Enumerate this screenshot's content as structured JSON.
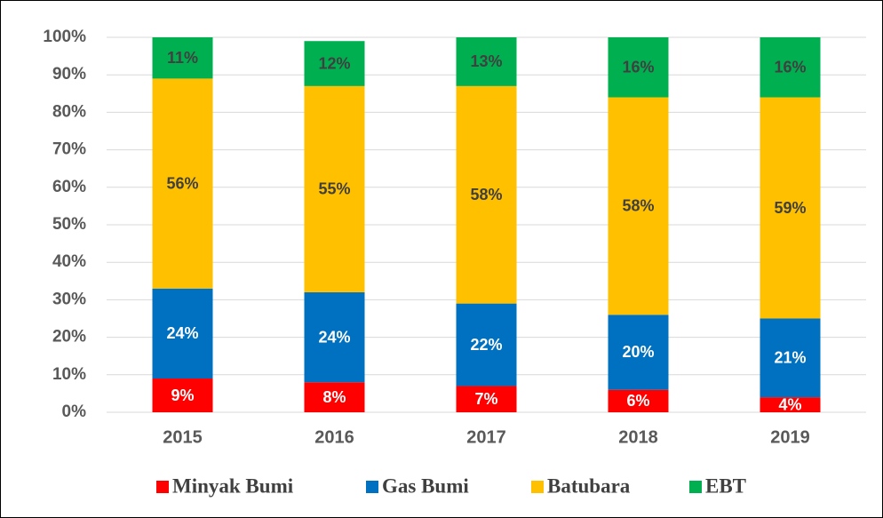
{
  "chart_data": {
    "type": "stacked_bar",
    "categories": [
      "2015",
      "2016",
      "2017",
      "2018",
      "2019"
    ],
    "series": [
      {
        "name": "Minyak Bumi",
        "color": "#ff0000",
        "label_color": "#ffffff",
        "values": [
          9,
          8,
          7,
          6,
          4
        ],
        "value_labels": [
          "9%",
          "8%",
          "7%",
          "6%",
          "4%"
        ]
      },
      {
        "name": "Gas Bumi",
        "color": "#0070c0",
        "label_color": "#ffffff",
        "values": [
          24,
          24,
          22,
          20,
          21
        ],
        "value_labels": [
          "24%",
          "24%",
          "22%",
          "20%",
          "21%"
        ]
      },
      {
        "name": "Batubara",
        "color": "#ffc000",
        "label_color": "#404040",
        "values": [
          56,
          55,
          58,
          58,
          59
        ],
        "value_labels": [
          "56%",
          "55%",
          "58%",
          "58%",
          "59%"
        ]
      },
      {
        "name": "EBT",
        "color": "#00b050",
        "label_color": "#404040",
        "values": [
          11,
          12,
          13,
          16,
          16
        ],
        "value_labels": [
          "11%",
          "12%",
          "13%",
          "16%",
          "16%"
        ]
      }
    ],
    "ylim": [
      0,
      100
    ],
    "yticks": [
      {
        "value": 0,
        "label": "0%"
      },
      {
        "value": 10,
        "label": "10%"
      },
      {
        "value": 20,
        "label": "20%"
      },
      {
        "value": 30,
        "label": "30%"
      },
      {
        "value": 40,
        "label": "40%"
      },
      {
        "value": 50,
        "label": "50%"
      },
      {
        "value": 60,
        "label": "60%"
      },
      {
        "value": 70,
        "label": "70%"
      },
      {
        "value": 80,
        "label": "80%"
      },
      {
        "value": 90,
        "label": "90%"
      },
      {
        "value": 100,
        "label": "100%"
      }
    ],
    "grid": true,
    "legend": "bottom"
  }
}
